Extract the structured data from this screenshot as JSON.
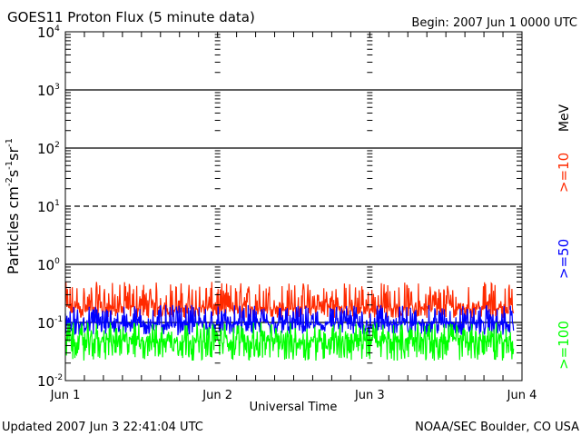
{
  "chart_data": {
    "type": "line",
    "title": "GOES11 Proton Flux (5 minute data)",
    "begin_label": "Begin: 2007 Jun 1 0000 UTC",
    "xlabel": "Universal Time",
    "ylabel": "Particles cm⁻²s⁻¹sr⁻¹",
    "ylabel_parts": {
      "base": "Particles cm",
      "e1": "-2",
      "s": "s",
      "e2": "-1",
      "sr": "sr",
      "e3": "-1"
    },
    "yscale": "log",
    "ylim": [
      0.01,
      10000
    ],
    "y_ticks": [
      {
        "value": 10000,
        "base": "10",
        "exp": "4"
      },
      {
        "value": 1000,
        "base": "10",
        "exp": "3"
      },
      {
        "value": 100,
        "base": "10",
        "exp": "2"
      },
      {
        "value": 10,
        "base": "10",
        "exp": "1"
      },
      {
        "value": 1,
        "base": "10",
        "exp": "0"
      },
      {
        "value": 0.1,
        "base": "10",
        "exp": "-1"
      },
      {
        "value": 0.01,
        "base": "10",
        "exp": "-2"
      }
    ],
    "x_ticks": [
      "Jun 1",
      "Jun 2",
      "Jun 3",
      "Jun 4"
    ],
    "xlim_days": [
      0,
      3
    ],
    "data_end_day": 2.945,
    "sample_minutes": 5,
    "threshold_line": 10,
    "series": [
      {
        "name": ">=10 MeV",
        "label": ">=10",
        "color": "#ff2a00",
        "typical_range": [
          0.12,
          0.5
        ],
        "baseline": 0.17
      },
      {
        "name": ">=50 MeV",
        "label": ">=50",
        "color": "#0000ff",
        "typical_range": [
          0.06,
          0.2
        ],
        "baseline": 0.09
      },
      {
        "name": ">=100 MeV",
        "label": ">=100",
        "color": "#00ff00",
        "typical_range": [
          0.022,
          0.1
        ],
        "baseline": 0.045
      }
    ],
    "unit_label": "MeV"
  },
  "footer": {
    "updated": "Updated 2007 Jun  3 22:41:04 UTC",
    "source": "NOAA/SEC Boulder, CO USA"
  }
}
